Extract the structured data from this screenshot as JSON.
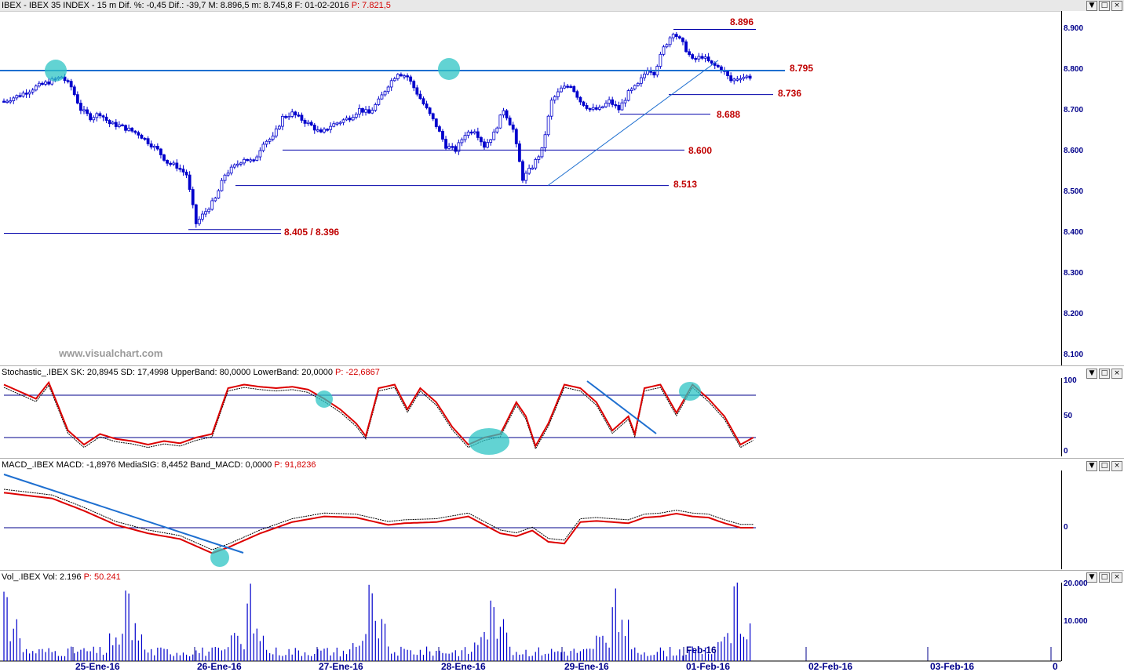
{
  "header": {
    "title_black": "IBEX - IBEX 35 INDEX - 15 m Dif. %: -0,45 Dif.: -39,7 M: 8.896,5 m: 8.745,8 F: 01-02-2016",
    "title_red": "P: 7.821,5"
  },
  "watermark": "www.visualchart.com",
  "window_buttons": [
    "▼",
    "□",
    "×"
  ],
  "colors": {
    "candle": "#0000cc",
    "level_line": "#0000aa",
    "level_label": "#c00000",
    "oscillator": "#dd0000",
    "signal": "#000000",
    "trendline": "#1e6fd0",
    "highlight": "#2ec4c4",
    "axis_text": "#00008b"
  },
  "price_axis": [
    "8.900",
    "8.800",
    "8.700",
    "8.600",
    "8.500",
    "8.400",
    "8.300",
    "8.200",
    "8.100"
  ],
  "levels": [
    {
      "label": "8.896",
      "value": 8896
    },
    {
      "label": "8.795",
      "value": 8795
    },
    {
      "label": "8.736",
      "value": 8736
    },
    {
      "label": "8.688",
      "value": 8688
    },
    {
      "label": "8.600",
      "value": 8600
    },
    {
      "label": "8.513",
      "value": 8513
    },
    {
      "label": "8.405 / 8.396",
      "value": 8405
    }
  ],
  "stochastic": {
    "header_black": "Stochastic_.IBEX SK: 20,8945 SD: 17,4998 UpperBand: 80,0000 LowerBand: 20,0000",
    "header_red": "P: -22,6867",
    "axis": [
      "100",
      "50",
      "0"
    ]
  },
  "macd": {
    "header_black": "MACD_.IBEX MACD: -1,8976 MediaSIG: 8,4452 Band_MACD: 0,0000",
    "header_red": "P: 91,8236",
    "axis": [
      "0"
    ]
  },
  "volume": {
    "header_black": "Vol_.IBEX Vol: 2.196",
    "header_red": "P: 50.241",
    "axis": [
      "20.000",
      "10.000"
    ],
    "marker": "Feb-16"
  },
  "dates": [
    "25-Ene-16",
    "26-Ene-16",
    "27-Ene-16",
    "28-Ene-16",
    "29-Ene-16",
    "01-Feb-16",
    "02-Feb-16",
    "03-Feb-16",
    "0"
  ],
  "chart_data": {
    "type": "candlestick",
    "title": "IBEX - IBEX 35 INDEX - 15 m",
    "ylim": [
      8070,
      8920
    ],
    "categories": [
      "25-Ene-16",
      "26-Ene-16",
      "27-Ene-16",
      "28-Ene-16",
      "29-Ene-16",
      "01-Feb-16"
    ],
    "close_path": [
      [
        0,
        8720
      ],
      [
        5,
        8735
      ],
      [
        10,
        8755
      ],
      [
        15,
        8770
      ],
      [
        18,
        8780
      ],
      [
        21,
        8755
      ],
      [
        24,
        8700
      ],
      [
        27,
        8680
      ],
      [
        30,
        8690
      ],
      [
        33,
        8665
      ],
      [
        36,
        8660
      ],
      [
        39,
        8650
      ],
      [
        42,
        8640
      ],
      [
        45,
        8620
      ],
      [
        48,
        8600
      ],
      [
        51,
        8570
      ],
      [
        54,
        8560
      ],
      [
        57,
        8540
      ],
      [
        60,
        8420
      ],
      [
        63,
        8450
      ],
      [
        66,
        8480
      ],
      [
        69,
        8540
      ],
      [
        72,
        8560
      ],
      [
        75,
        8580
      ],
      [
        78,
        8570
      ],
      [
        81,
        8620
      ],
      [
        84,
        8630
      ],
      [
        87,
        8680
      ],
      [
        90,
        8690
      ],
      [
        93,
        8675
      ],
      [
        96,
        8660
      ],
      [
        99,
        8640
      ],
      [
        102,
        8660
      ],
      [
        105,
        8670
      ],
      [
        108,
        8680
      ],
      [
        111,
        8700
      ],
      [
        114,
        8690
      ],
      [
        117,
        8720
      ],
      [
        120,
        8760
      ],
      [
        123,
        8790
      ],
      [
        126,
        8780
      ],
      [
        129,
        8740
      ],
      [
        132,
        8700
      ],
      [
        135,
        8660
      ],
      [
        138,
        8610
      ],
      [
        141,
        8600
      ],
      [
        144,
        8640
      ],
      [
        147,
        8650
      ],
      [
        150,
        8610
      ],
      [
        153,
        8640
      ],
      [
        156,
        8700
      ],
      [
        159,
        8650
      ],
      [
        162,
        8530
      ],
      [
        165,
        8560
      ],
      [
        168,
        8600
      ],
      [
        171,
        8720
      ],
      [
        174,
        8750
      ],
      [
        177,
        8760
      ],
      [
        180,
        8720
      ],
      [
        183,
        8700
      ],
      [
        186,
        8700
      ],
      [
        189,
        8720
      ],
      [
        192,
        8700
      ],
      [
        195,
        8740
      ],
      [
        198,
        8760
      ],
      [
        201,
        8800
      ],
      [
        203,
        8790
      ],
      [
        206,
        8850
      ],
      [
        209,
        8890
      ],
      [
        212,
        8860
      ],
      [
        215,
        8820
      ],
      [
        218,
        8830
      ],
      [
        221,
        8810
      ],
      [
        224,
        8800
      ],
      [
        227,
        8770
      ],
      [
        230,
        8780
      ]
    ],
    "stochastic_sk": [
      [
        0,
        95
      ],
      [
        10,
        75
      ],
      [
        14,
        98
      ],
      [
        20,
        30
      ],
      [
        25,
        10
      ],
      [
        30,
        25
      ],
      [
        35,
        18
      ],
      [
        40,
        15
      ],
      [
        45,
        10
      ],
      [
        50,
        15
      ],
      [
        55,
        12
      ],
      [
        60,
        20
      ],
      [
        65,
        25
      ],
      [
        70,
        90
      ],
      [
        75,
        95
      ],
      [
        80,
        92
      ],
      [
        85,
        90
      ],
      [
        90,
        92
      ],
      [
        95,
        88
      ],
      [
        100,
        75
      ],
      [
        105,
        60
      ],
      [
        110,
        40
      ],
      [
        113,
        22
      ],
      [
        117,
        90
      ],
      [
        122,
        95
      ],
      [
        126,
        60
      ],
      [
        130,
        90
      ],
      [
        135,
        70
      ],
      [
        140,
        35
      ],
      [
        145,
        10
      ],
      [
        150,
        20
      ],
      [
        155,
        25
      ],
      [
        160,
        70
      ],
      [
        163,
        50
      ],
      [
        166,
        8
      ],
      [
        170,
        40
      ],
      [
        175,
        95
      ],
      [
        180,
        90
      ],
      [
        185,
        70
      ],
      [
        190,
        30
      ],
      [
        195,
        50
      ],
      [
        197,
        25
      ],
      [
        200,
        90
      ],
      [
        205,
        95
      ],
      [
        210,
        55
      ],
      [
        215,
        95
      ],
      [
        220,
        75
      ],
      [
        225,
        50
      ],
      [
        230,
        10
      ],
      [
        234,
        20
      ]
    ],
    "macd": [
      [
        0,
        62
      ],
      [
        15,
        52
      ],
      [
        25,
        30
      ],
      [
        35,
        5
      ],
      [
        45,
        -10
      ],
      [
        55,
        -20
      ],
      [
        65,
        -45
      ],
      [
        70,
        -35
      ],
      [
        80,
        -10
      ],
      [
        90,
        10
      ],
      [
        100,
        20
      ],
      [
        110,
        18
      ],
      [
        120,
        5
      ],
      [
        125,
        8
      ],
      [
        135,
        10
      ],
      [
        145,
        20
      ],
      [
        155,
        -10
      ],
      [
        160,
        -15
      ],
      [
        165,
        -5
      ],
      [
        170,
        -25
      ],
      [
        175,
        -28
      ],
      [
        180,
        10
      ],
      [
        185,
        12
      ],
      [
        190,
        10
      ],
      [
        195,
        8
      ],
      [
        200,
        18
      ],
      [
        205,
        20
      ],
      [
        210,
        25
      ],
      [
        215,
        20
      ],
      [
        220,
        18
      ],
      [
        225,
        8
      ],
      [
        230,
        0
      ]
    ],
    "volume": "bars per 15-min session, peaks about 20.000 at session opens"
  }
}
